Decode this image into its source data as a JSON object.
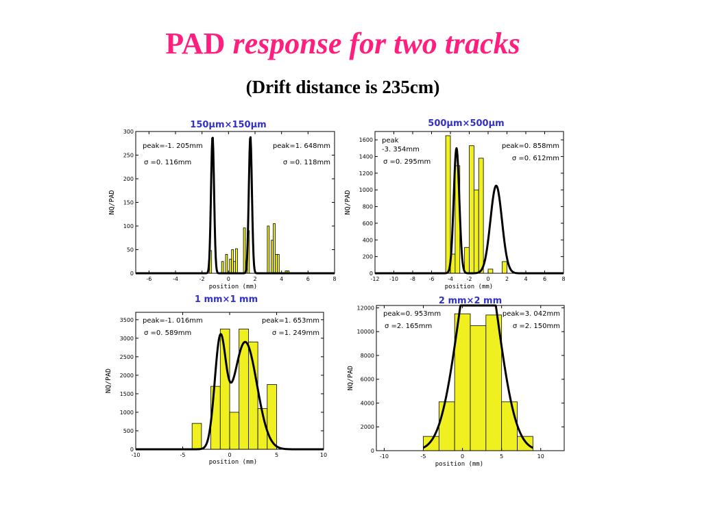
{
  "title": {
    "prefix": "PAD",
    "italic": "response for two tracks"
  },
  "subtitle": "(Drift distance is 235cm)",
  "colors": {
    "title": "#ff1f7f",
    "panel_title": "#3030c8",
    "bar_fill": "#f0f020",
    "curve": "#000000"
  },
  "chart_data": [
    {
      "type": "bar",
      "title": "150μm×150μm",
      "xlabel": "position (mm)",
      "ylabel": "NQ/PAD",
      "xlim": [
        -7,
        8
      ],
      "ylim": [
        0,
        300
      ],
      "xticks": [
        -6,
        -4,
        -2,
        0,
        2,
        4,
        6,
        8
      ],
      "yticks": [
        0,
        50,
        100,
        150,
        200,
        250,
        300
      ],
      "bin_width": 0.15,
      "bins": [
        {
          "x": -1.35,
          "y": 48
        },
        {
          "x": -0.45,
          "y": 25
        },
        {
          "x": -0.15,
          "y": 40
        },
        {
          "x": 0.15,
          "y": 30
        },
        {
          "x": 0.3,
          "y": 50
        },
        {
          "x": 0.45,
          "y": 25
        },
        {
          "x": 0.6,
          "y": 52
        },
        {
          "x": 1.2,
          "y": 96
        },
        {
          "x": 1.5,
          "y": 90
        },
        {
          "x": 3.0,
          "y": 100
        },
        {
          "x": 3.3,
          "y": 70
        },
        {
          "x": 3.45,
          "y": 105
        },
        {
          "x": 3.6,
          "y": 40
        },
        {
          "x": 3.75,
          "y": 40
        },
        {
          "x": 4.35,
          "y": 5
        },
        {
          "x": 4.5,
          "y": 5
        }
      ],
      "fit": [
        {
          "peak": -1.205,
          "sigma": 0.116,
          "amp": 290
        },
        {
          "peak": 1.648,
          "sigma": 0.118,
          "amp": 290
        }
      ],
      "annotations": [
        {
          "peak_label": "peak=-1. 205mm",
          "sigma_label": "σ =0. 116mm",
          "position": "top-left"
        },
        {
          "peak_label": "peak=1. 648mm",
          "sigma_label": "σ =0. 118mm",
          "position": "top-right"
        }
      ]
    },
    {
      "type": "bar",
      "title": "500μm×500μm",
      "xlabel": "position (mm)",
      "ylabel": "NQ/PAD",
      "xlim": [
        -12,
        8
      ],
      "ylim": [
        0,
        1700
      ],
      "xticks": [
        -12,
        -10,
        -8,
        -6,
        -4,
        -2,
        0,
        2,
        4,
        6,
        8
      ],
      "yticks": [
        0,
        200,
        400,
        600,
        800,
        1000,
        1200,
        1400,
        1600
      ],
      "bin_width": 0.5,
      "bins": [
        {
          "x": -4.25,
          "y": 1650
        },
        {
          "x": -3.75,
          "y": 230
        },
        {
          "x": -3.25,
          "y": 1290
        },
        {
          "x": -2.25,
          "y": 310
        },
        {
          "x": -1.75,
          "y": 1530
        },
        {
          "x": -1.25,
          "y": 1000
        },
        {
          "x": -0.75,
          "y": 1380
        },
        {
          "x": 0.25,
          "y": 50
        },
        {
          "x": 1.75,
          "y": 140
        }
      ],
      "fit": [
        {
          "peak": -3.354,
          "sigma": 0.295,
          "amp": 1500
        },
        {
          "peak": 0.858,
          "sigma": 0.612,
          "amp": 1050
        }
      ],
      "annotations": [
        {
          "peak_label": "peak",
          "peak_label2": "-3. 354mm",
          "sigma_label": "σ =0. 295mm",
          "position": "top-left"
        },
        {
          "peak_label": "peak=0. 858mm",
          "sigma_label": "σ =0. 612mm",
          "position": "top-right"
        }
      ]
    },
    {
      "type": "bar",
      "title": "1 mm×1 mm",
      "xlabel": "position (mm)",
      "ylabel": "NQ/PAD",
      "xlim": [
        -10,
        10
      ],
      "ylim": [
        0,
        3700
      ],
      "xticks": [
        -10,
        -5,
        0,
        5,
        10
      ],
      "yticks": [
        0,
        500,
        1000,
        1500,
        2000,
        2500,
        3000,
        3500
      ],
      "bin_width": 1,
      "bins": [
        {
          "x": -3.5,
          "y": 700
        },
        {
          "x": -2.5,
          "y": 0
        },
        {
          "x": -1.5,
          "y": 1700
        },
        {
          "x": -0.5,
          "y": 3250
        },
        {
          "x": 0.5,
          "y": 1000
        },
        {
          "x": 1.5,
          "y": 3250
        },
        {
          "x": 2.5,
          "y": 2900
        },
        {
          "x": 3.5,
          "y": 1100
        },
        {
          "x": 4.5,
          "y": 1750
        }
      ],
      "fit": [
        {
          "peak": -1.016,
          "sigma": 0.589,
          "amp": 2800
        },
        {
          "peak": 1.653,
          "sigma": 1.249,
          "amp": 2900
        }
      ],
      "annotations": [
        {
          "peak_label": "peak=-1. 016mm",
          "sigma_label": "σ =0. 589mm",
          "position": "top-left"
        },
        {
          "peak_label": "peak=1. 653mm",
          "sigma_label": "σ =1. 249mm",
          "position": "top-right"
        }
      ]
    },
    {
      "type": "bar",
      "title": "2 mm×2 mm",
      "xlabel": "position (mm)",
      "ylabel": "NQ/PAD",
      "xlim": [
        -11,
        13
      ],
      "ylim": [
        0,
        12200
      ],
      "xticks": [
        -10,
        -5,
        0,
        5,
        10
      ],
      "yticks": [
        0,
        2000,
        4000,
        6000,
        8000,
        10000,
        12000
      ],
      "bin_width": 2,
      "bins": [
        {
          "x": -4,
          "y": 1200
        },
        {
          "x": -2,
          "y": 4100
        },
        {
          "x": 0,
          "y": 11500
        },
        {
          "x": 2,
          "y": 10500
        },
        {
          "x": 4,
          "y": 11400
        },
        {
          "x": 6,
          "y": 4100
        },
        {
          "x": 8,
          "y": 1200
        }
      ],
      "fit": [
        {
          "peak": 0.953,
          "sigma": 2.165,
          "amp": 10500
        },
        {
          "peak": 3.042,
          "sigma": 2.15,
          "amp": 10500
        }
      ],
      "fit_range": [
        -5,
        9
      ],
      "annotations": [
        {
          "peak_label": "peak=0. 953mm",
          "sigma_label": "σ =2. 165mm",
          "position": "top-left"
        },
        {
          "peak_label": "peak=3. 042mm",
          "sigma_label": "σ =2. 150mm",
          "position": "top-right"
        }
      ]
    }
  ]
}
